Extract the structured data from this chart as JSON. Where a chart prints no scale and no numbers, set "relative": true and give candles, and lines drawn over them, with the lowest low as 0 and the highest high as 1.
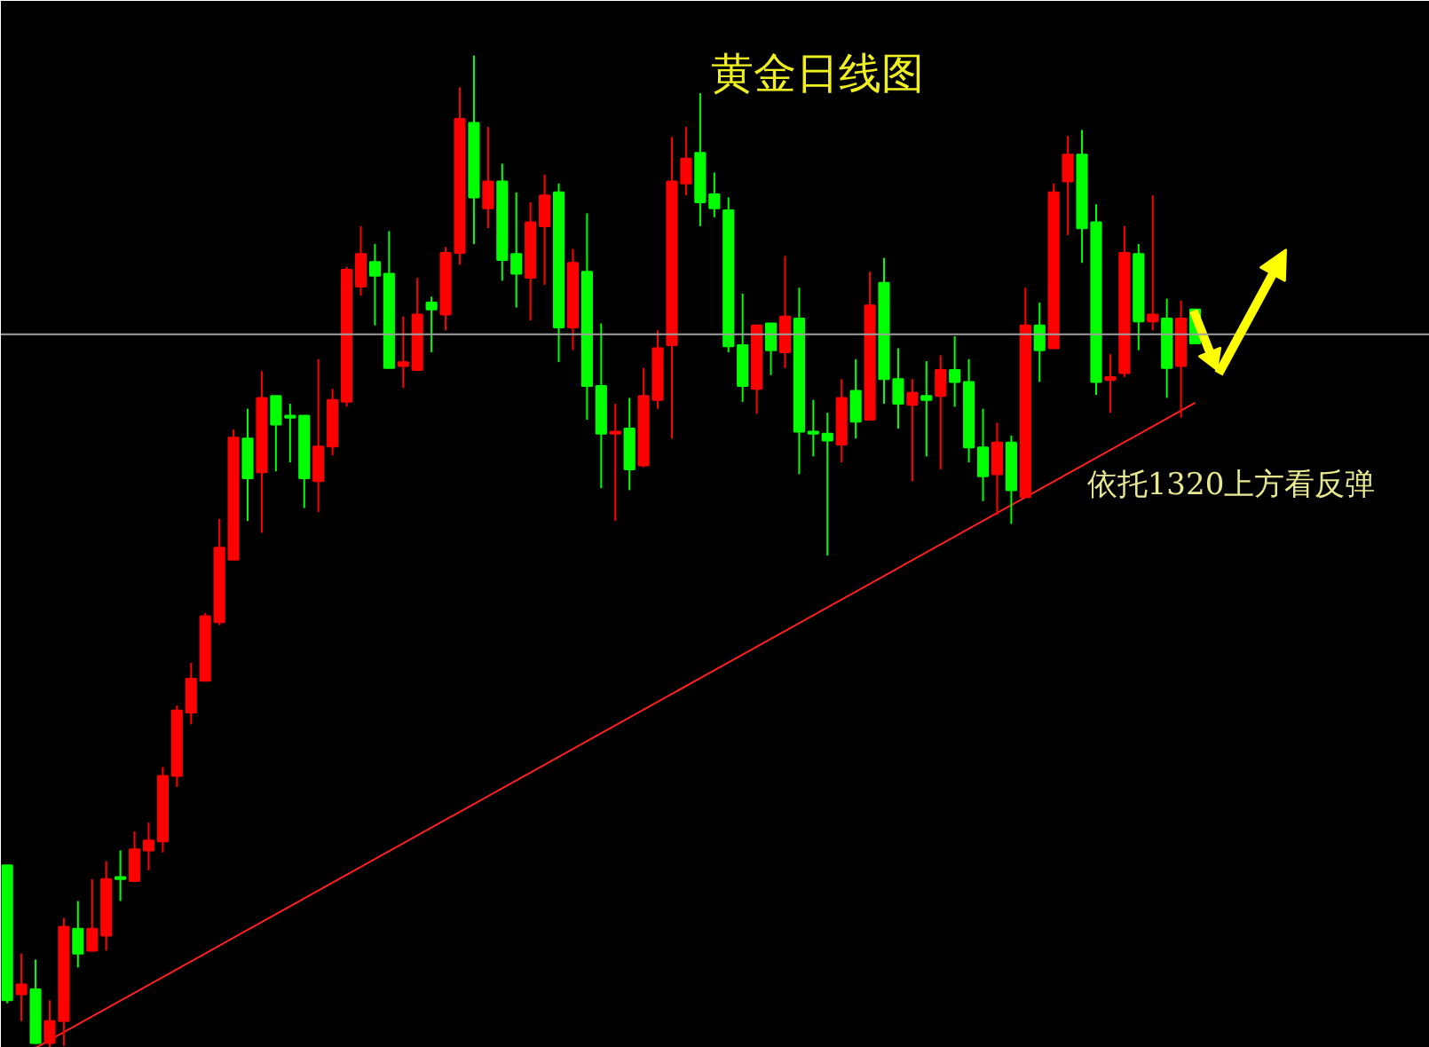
{
  "chart_data": {
    "type": "candlestick",
    "title": "黄金日线图",
    "relative": true,
    "tick_labels": false,
    "grid": false,
    "categories": [
      null,
      null,
      null,
      null,
      null,
      null,
      null,
      null,
      null,
      null,
      null,
      null,
      null,
      null,
      null,
      null,
      null,
      null,
      null,
      null,
      null,
      null,
      null,
      null,
      null,
      null,
      null,
      null,
      null,
      null,
      null,
      null,
      null,
      null,
      null,
      null,
      null,
      null,
      null,
      null,
      null,
      null,
      null,
      null,
      null,
      null,
      null,
      null,
      null,
      null,
      null,
      null,
      null,
      null,
      null,
      null,
      null,
      null,
      null,
      null,
      null,
      null,
      null,
      null,
      null,
      null,
      null,
      null,
      null,
      null,
      null,
      null,
      null,
      null,
      null,
      null,
      null,
      null,
      null,
      null,
      null,
      null,
      null,
      null,
      null
    ],
    "ohlc": [
      [
        0.184,
        0.184,
        0.045,
        0.048
      ],
      [
        0.054,
        0.095,
        0.027,
        0.064
      ],
      [
        0.059,
        0.089,
        0.004,
        0.005
      ],
      [
        0.005,
        0.048,
        0,
        0.027
      ],
      [
        0.027,
        0.131,
        0.002,
        0.122
      ],
      [
        0.12,
        0.148,
        0.081,
        0.095
      ],
      [
        0.098,
        0.17,
        0.098,
        0.12
      ],
      [
        0.113,
        0.188,
        0.098,
        0.17
      ],
      [
        0.172,
        0.199,
        0.148,
        0.17
      ],
      [
        0.168,
        0.218,
        0.168,
        0.2
      ],
      [
        0.199,
        0.227,
        0.179,
        0.209
      ],
      [
        0.208,
        0.283,
        0.197,
        0.274
      ],
      [
        0.274,
        0.345,
        0.263,
        0.34
      ],
      [
        0.338,
        0.388,
        0.326,
        0.372
      ],
      [
        0.37,
        0.438,
        0.37,
        0.435
      ],
      [
        0.429,
        0.533,
        0.426,
        0.504
      ],
      [
        0.492,
        0.623,
        0.492,
        0.615
      ],
      [
        0.614,
        0.644,
        0.531,
        0.574
      ],
      [
        0.58,
        0.682,
        0.519,
        0.655
      ],
      [
        0.657,
        0.657,
        0.581,
        0.628
      ],
      [
        0.637,
        0.649,
        0.59,
        0.635
      ],
      [
        0.637,
        0.637,
        0.544,
        0.574
      ],
      [
        0.571,
        0.694,
        0.54,
        0.606
      ],
      [
        0.606,
        0.664,
        0.597,
        0.653
      ],
      [
        0.651,
        0.787,
        0.646,
        0.784
      ],
      [
        0.767,
        0.828,
        0.758,
        0.8
      ],
      [
        0.792,
        0.81,
        0.728,
        0.778
      ],
      [
        0.78,
        0.823,
        0.685,
        0.685
      ],
      [
        0.687,
        0.737,
        0.665,
        0.691
      ],
      [
        0.683,
        0.776,
        0.683,
        0.739
      ],
      [
        0.751,
        0.757,
        0.701,
        0.744
      ],
      [
        0.739,
        0.807,
        0.723,
        0.801
      ],
      [
        0.801,
        0.968,
        0.789,
        0.936
      ],
      [
        0.932,
        1,
        0.81,
        0.857
      ],
      [
        0.846,
        0.928,
        0.826,
        0.873
      ],
      [
        0.873,
        0.891,
        0.773,
        0.794
      ],
      [
        0.8,
        0.862,
        0.746,
        0.78
      ],
      [
        0.776,
        0.852,
        0.733,
        0.832
      ],
      [
        0.828,
        0.88,
        0.769,
        0.859
      ],
      [
        0.862,
        0.871,
        0.691,
        0.726
      ],
      [
        0.726,
        0.805,
        0.703,
        0.791
      ],
      [
        0.782,
        0.841,
        0.633,
        0.667
      ],
      [
        0.667,
        0.73,
        0.564,
        0.619
      ],
      [
        0.619,
        0.649,
        0.531,
        0.621
      ],
      [
        0.624,
        0.655,
        0.562,
        0.583
      ],
      [
        0.587,
        0.685,
        0.585,
        0.657
      ],
      [
        0.653,
        0.723,
        0.644,
        0.705
      ],
      [
        0.708,
        0.918,
        0.614,
        0.873
      ],
      [
        0.871,
        0.928,
        0.859,
        0.896
      ],
      [
        0.902,
        0.962,
        0.828,
        0.852
      ],
      [
        0.86,
        0.882,
        0.837,
        0.846
      ],
      [
        0.844,
        0.857,
        0.701,
        0.707
      ],
      [
        0.708,
        0.76,
        0.651,
        0.667
      ],
      [
        0.664,
        0.728,
        0.639,
        0.728
      ],
      [
        0.73,
        0.73,
        0.678,
        0.703
      ],
      [
        0.701,
        0.798,
        0.685,
        0.737
      ],
      [
        0.735,
        0.766,
        0.578,
        0.621
      ],
      [
        0.621,
        0.653,
        0.596,
        0.619
      ],
      [
        0.619,
        0.64,
        0.496,
        0.612
      ],
      [
        0.608,
        0.674,
        0.59,
        0.655
      ],
      [
        0.662,
        0.694,
        0.614,
        0.631
      ],
      [
        0.633,
        0.782,
        0.633,
        0.748
      ],
      [
        0.771,
        0.796,
        0.649,
        0.674
      ],
      [
        0.674,
        0.705,
        0.624,
        0.649
      ],
      [
        0.648,
        0.674,
        0.571,
        0.66
      ],
      [
        0.657,
        0.692,
        0.596,
        0.653
      ],
      [
        0.657,
        0.698,
        0.583,
        0.683
      ],
      [
        0.683,
        0.717,
        0.646,
        0.671
      ],
      [
        0.671,
        0.694,
        0.59,
        0.605
      ],
      [
        0.605,
        0.644,
        0.551,
        0.576
      ],
      [
        0.578,
        0.63,
        0.537,
        0.61
      ],
      [
        0.61,
        0.617,
        0.528,
        0.562
      ],
      [
        0.555,
        0.766,
        0.555,
        0.728
      ],
      [
        0.728,
        0.751,
        0.671,
        0.703
      ],
      [
        0.705,
        0.871,
        0.705,
        0.862
      ],
      [
        0.873,
        0.919,
        0.819,
        0.9
      ],
      [
        0.9,
        0.925,
        0.791,
        0.826
      ],
      [
        0.832,
        0.85,
        0.658,
        0.671
      ],
      [
        0.673,
        0.699,
        0.64,
        0.676
      ],
      [
        0.68,
        0.828,
        0.676,
        0.801
      ],
      [
        0.8,
        0.81,
        0.703,
        0.732
      ],
      [
        0.732,
        0.859,
        0.723,
        0.739
      ],
      [
        0.735,
        0.755,
        0.655,
        0.685
      ],
      [
        0.687,
        0.753,
        0.635,
        0.735
      ],
      [
        0.744,
        0.744,
        0.71,
        0.71
      ]
    ],
    "colors": [
      "#00ff00",
      "#ff0000",
      "#00ff00",
      "#ff0000",
      "#ff0000",
      "#00ff00",
      "#ff0000",
      "#ff0000",
      "#00ff00",
      "#ff0000",
      "#ff0000",
      "#ff0000",
      "#ff0000",
      "#ff0000",
      "#ff0000",
      "#ff0000",
      "#ff0000",
      "#00ff00",
      "#ff0000",
      "#00ff00",
      "#00ff00",
      "#00ff00",
      "#ff0000",
      "#ff0000",
      "#ff0000",
      "#ff0000",
      "#00ff00",
      "#00ff00",
      "#ff0000",
      "#ff0000",
      "#00ff00",
      "#ff0000",
      "#ff0000",
      "#00ff00",
      "#ff0000",
      "#00ff00",
      "#00ff00",
      "#ff0000",
      "#ff0000",
      "#00ff00",
      "#ff0000",
      "#00ff00",
      "#00ff00",
      "#ff0000",
      "#00ff00",
      "#ff0000",
      "#ff0000",
      "#ff0000",
      "#ff0000",
      "#00ff00",
      "#00ff00",
      "#00ff00",
      "#00ff00",
      "#ff0000",
      "#00ff00",
      "#ff0000",
      "#00ff00",
      "#00ff00",
      "#00ff00",
      "#ff0000",
      "#00ff00",
      "#ff0000",
      "#00ff00",
      "#00ff00",
      "#ff0000",
      "#00ff00",
      "#ff0000",
      "#00ff00",
      "#00ff00",
      "#00ff00",
      "#ff0000",
      "#00ff00",
      "#ff0000",
      "#00ff00",
      "#ff0000",
      "#ff0000",
      "#00ff00",
      "#00ff00",
      "#ff0000",
      "#ff0000",
      "#00ff00",
      "#ff0000",
      "#00ff00",
      "#ff0000",
      "#00ff00"
    ],
    "series": [
      {
        "type": "line",
        "color": "#ff2020",
        "values": [
          null,
          null,
          0,
          null,
          null,
          null,
          null,
          null,
          null,
          null,
          null,
          null,
          null,
          null,
          null,
          null,
          null,
          null,
          null,
          null,
          null,
          null,
          null,
          null,
          null,
          null,
          null,
          null,
          null,
          null,
          null,
          null,
          null,
          null,
          null,
          null,
          null,
          null,
          null,
          null,
          null,
          null,
          null,
          null,
          null,
          null,
          null,
          null,
          null,
          null,
          null,
          null,
          null,
          null,
          null,
          null,
          null,
          null,
          null,
          null,
          null,
          null,
          null,
          null,
          null,
          null,
          null,
          null,
          null,
          null,
          null,
          null,
          null,
          null,
          null,
          null,
          null,
          null,
          null,
          null,
          null,
          null,
          null,
          null,
          0.65
        ]
      }
    ],
    "ref_lines": [
      {
        "axis": "y",
        "value": 0.719,
        "color": "#a0a0a0"
      }
    ],
    "annotations": [
      "依托1320上方看反弹"
    ]
  }
}
